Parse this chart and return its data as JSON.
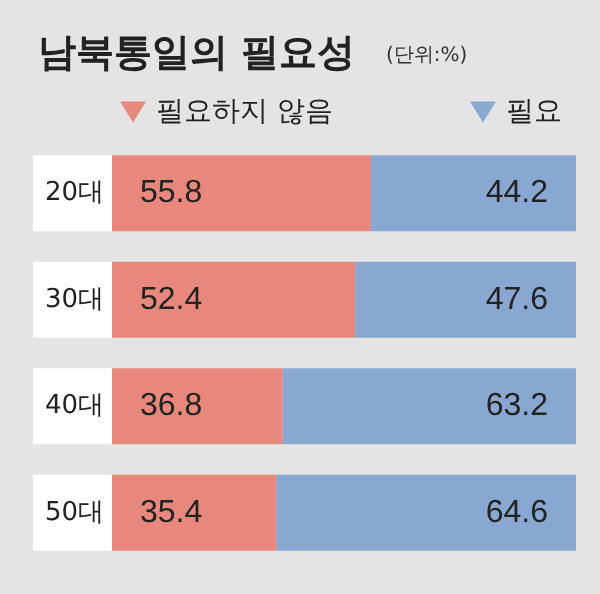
{
  "chart_data": {
    "type": "bar",
    "title": "남북통일의 필요성",
    "subtitle": "(단위:%)",
    "orientation": "horizontal",
    "stacked": true,
    "categories": [
      "20대",
      "30대",
      "40대",
      "50대"
    ],
    "series": [
      {
        "name": "필요하지 않음",
        "color": "#e8887c",
        "values": [
          55.8,
          52.4,
          36.8,
          35.4
        ]
      },
      {
        "name": "필요",
        "color": "#88a8d2",
        "values": [
          44.2,
          47.6,
          63.2,
          64.6
        ]
      }
    ],
    "data_labels": true,
    "legend": "top"
  }
}
